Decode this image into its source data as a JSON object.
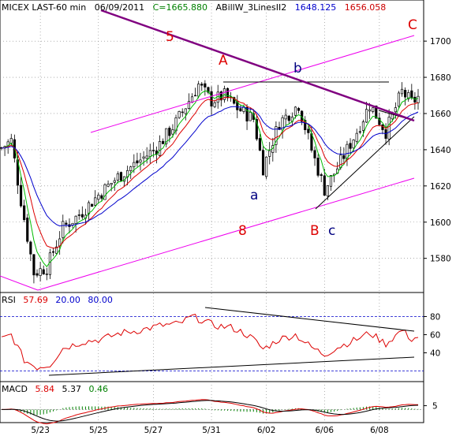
{
  "header": {
    "symbol": "MICEX LAST-60 min",
    "date": "06/09/2011",
    "close_label": "C=1665.880",
    "indicator_name": "ABillW_3LinesII2",
    "indicator_v1": "1648.125",
    "indicator_v2": "1656.058"
  },
  "colors": {
    "close": "#008000",
    "ind1": "#0000cc",
    "ind2": "#cc0000",
    "channel": "#ee00ee",
    "trendline": "#800080",
    "rsi": "#dd0000",
    "ma_green": "#00bb00",
    "ma_red": "#dd0000",
    "ma_blue": "#0000cc",
    "wave_red": "#dd0000",
    "wave_blue": "#000080"
  },
  "wave_labels": {
    "five": "5",
    "A": "A",
    "b": "b",
    "C": "C",
    "a": "a",
    "eight": "8",
    "B": "B",
    "c": "c"
  },
  "rsi_header": {
    "name": "RSI",
    "value": "57.69",
    "low": "20.00",
    "high": "80.00"
  },
  "macd_header": {
    "name": "MACD",
    "v1": "5.84",
    "v2": "5.37",
    "v3": "0.46"
  },
  "chart_data": {
    "type": "candlestick",
    "price_axis": {
      "ylim": [
        1562,
        1714
      ],
      "ticks": [
        "1580",
        "1600",
        "1620",
        "1640",
        "1660",
        "1680",
        "1700"
      ]
    },
    "rsi_axis": {
      "ylim": [
        10,
        90
      ],
      "ticks": [
        "40",
        "60",
        "80"
      ],
      "levels": [
        20,
        80
      ]
    },
    "macd_axis": {
      "ylim": [
        -15,
        20
      ],
      "ticks": [
        "5"
      ]
    },
    "x_labels": [
      "5/23",
      "5/25",
      "5/27",
      "5/31",
      "6/02",
      "6/06",
      "6/08"
    ],
    "x_label_bars": [
      12,
      30,
      47,
      65,
      82,
      100,
      117
    ],
    "bar_count": 130,
    "waypoints": [
      [
        0,
        1641
      ],
      [
        3,
        1645
      ],
      [
        6,
        1612
      ],
      [
        10,
        1572
      ],
      [
        14,
        1575
      ],
      [
        19,
        1597
      ],
      [
        24,
        1604
      ],
      [
        30,
        1615
      ],
      [
        36,
        1625
      ],
      [
        42,
        1633
      ],
      [
        48,
        1641
      ],
      [
        54,
        1655
      ],
      [
        58,
        1667
      ],
      [
        61,
        1676
      ],
      [
        65,
        1667
      ],
      [
        69,
        1670
      ],
      [
        73,
        1663
      ],
      [
        78,
        1657
      ],
      [
        81,
        1630
      ],
      [
        86,
        1655
      ],
      [
        92,
        1665
      ],
      [
        96,
        1640
      ],
      [
        100,
        1618
      ],
      [
        104,
        1630
      ],
      [
        110,
        1650
      ],
      [
        114,
        1665
      ],
      [
        119,
        1650
      ],
      [
        124,
        1672
      ],
      [
        127,
        1666
      ],
      [
        129,
        1669
      ]
    ],
    "rsi_waypoints": [
      [
        0,
        55
      ],
      [
        3,
        60
      ],
      [
        7,
        32
      ],
      [
        11,
        24
      ],
      [
        15,
        27
      ],
      [
        19,
        45
      ],
      [
        25,
        52
      ],
      [
        31,
        55
      ],
      [
        37,
        62
      ],
      [
        43,
        65
      ],
      [
        49,
        70
      ],
      [
        55,
        72
      ],
      [
        59,
        80
      ],
      [
        62,
        76
      ],
      [
        66,
        70
      ],
      [
        71,
        68
      ],
      [
        75,
        62
      ],
      [
        78,
        55
      ],
      [
        81,
        44
      ],
      [
        86,
        55
      ],
      [
        91,
        60
      ],
      [
        96,
        46
      ],
      [
        100,
        38
      ],
      [
        104,
        46
      ],
      [
        110,
        55
      ],
      [
        114,
        62
      ],
      [
        119,
        50
      ],
      [
        124,
        65
      ],
      [
        127,
        55
      ],
      [
        129,
        57.69
      ]
    ]
  }
}
